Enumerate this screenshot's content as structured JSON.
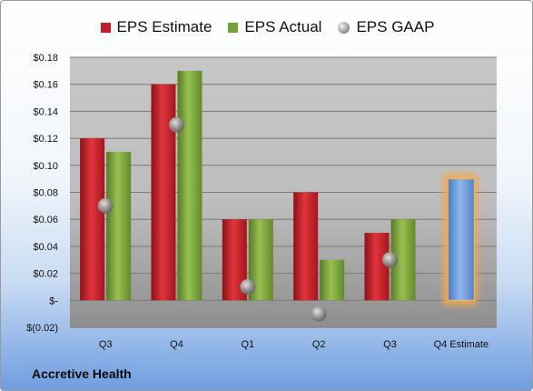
{
  "company": "Accretive Health",
  "chart_data": {
    "type": "bar",
    "categories": [
      "Q3",
      "Q4",
      "Q1",
      "Q2",
      "Q3",
      "Q4 Estimate"
    ],
    "series": [
      {
        "name": "EPS Estimate",
        "values": [
          0.12,
          0.16,
          0.06,
          0.08,
          0.05,
          null
        ],
        "color": "#c0202a"
      },
      {
        "name": "EPS Actual",
        "values": [
          0.11,
          0.17,
          0.06,
          0.03,
          0.06,
          null
        ],
        "color": "#79a13b"
      },
      {
        "name": "EPS GAAP",
        "values": [
          0.07,
          0.13,
          0.01,
          -0.01,
          0.03,
          null
        ],
        "color": "#9a9a9a",
        "marker": "circle"
      }
    ],
    "forecast": {
      "category": "Q4 Estimate",
      "value": 0.09,
      "color": "#6a96d8",
      "glow": "#f2a94a"
    },
    "ylim": [
      -0.02,
      0.18
    ],
    "yticks": [
      -0.02,
      0,
      0.02,
      0.04,
      0.06,
      0.08,
      0.1,
      0.12,
      0.14,
      0.16,
      0.18
    ],
    "ytick_labels": [
      "$(0.02)",
      "$-",
      "$0.02",
      "$0.04",
      "$0.06",
      "$0.08",
      "$0.10",
      "$0.12",
      "$0.14",
      "$0.16",
      "$0.18"
    ],
    "legend_position": "top",
    "grid": true
  }
}
